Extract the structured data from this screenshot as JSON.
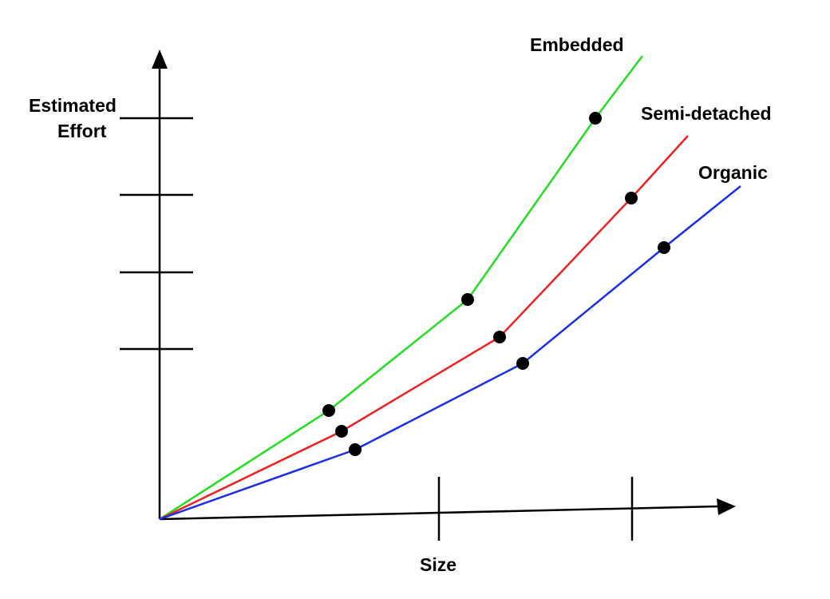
{
  "chart_data": {
    "type": "line",
    "title": "",
    "xlabel": "Size",
    "ylabel_lines": [
      "Estimated",
      "Effort"
    ],
    "xlim": [
      0,
      730
    ],
    "ylim": [
      0,
      580
    ],
    "x_ticks": [
      350,
      592
    ],
    "y_ticks": [
      213,
      309,
      406,
      502
    ],
    "grid": false,
    "legend": "none",
    "series": [
      {
        "name": "Embedded",
        "color": "#22dd22",
        "x": [
          0,
          212,
          386,
          546,
          605
        ],
        "y": [
          0,
          136,
          275,
          502,
          580
        ]
      },
      {
        "name": "Semi-detached",
        "color": "#ee2222",
        "x": [
          0,
          228,
          426,
          591,
          662
        ],
        "y": [
          0,
          110,
          228,
          402,
          480
        ]
      },
      {
        "name": "Organic",
        "color": "#1a2ee6",
        "x": [
          0,
          245,
          455,
          632,
          728
        ],
        "y": [
          0,
          87,
          195,
          340,
          417
        ]
      }
    ],
    "points": [
      {
        "series": "Embedded",
        "x": 212,
        "y": 136
      },
      {
        "series": "Embedded",
        "x": 386,
        "y": 275
      },
      {
        "series": "Embedded",
        "x": 546,
        "y": 502
      },
      {
        "series": "Semi-detached",
        "x": 228,
        "y": 110
      },
      {
        "series": "Semi-detached",
        "x": 426,
        "y": 228
      },
      {
        "series": "Semi-detached",
        "x": 591,
        "y": 402
      },
      {
        "series": "Organic",
        "x": 245,
        "y": 87
      },
      {
        "series": "Organic",
        "x": 455,
        "y": 195
      },
      {
        "series": "Organic",
        "x": 632,
        "y": 340
      }
    ]
  }
}
